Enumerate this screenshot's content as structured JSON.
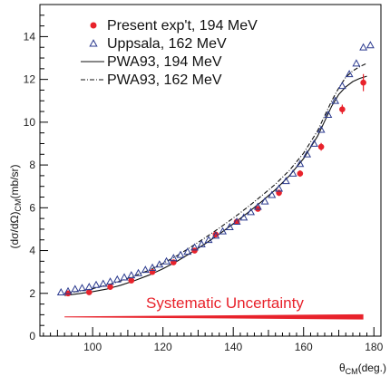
{
  "chart_data": {
    "type": "scatter",
    "ylabel": "(dσ/dΩ)",
    "ylabel_sub": "CM",
    "ylabel_unit": "(mb/sr)",
    "xlabel": "θ",
    "xlabel_sub": "CM",
    "xlabel_unit": "(deg.)",
    "xlim": [
      85,
      182
    ],
    "ylim": [
      0,
      15.5
    ],
    "xticks": [
      100,
      120,
      140,
      160,
      180
    ],
    "yticks": [
      0,
      2,
      4,
      6,
      8,
      10,
      12,
      14
    ],
    "grid": false,
    "legend_position": "top-left",
    "series": [
      {
        "name": "Present exp't, 194 MeV",
        "kind": "points",
        "marker": "filled-circle",
        "color": "#e8222b",
        "x": [
          93,
          99,
          105,
          111,
          117,
          123,
          129,
          135,
          141,
          147,
          153,
          159,
          165,
          171,
          177
        ],
        "y": [
          2.0,
          2.05,
          2.3,
          2.6,
          3.0,
          3.45,
          4.0,
          4.75,
          5.35,
          5.95,
          6.7,
          7.6,
          8.85,
          10.6,
          11.85
        ],
        "err": [
          0.1,
          0.1,
          0.1,
          0.1,
          0.1,
          0.1,
          0.1,
          0.12,
          0.12,
          0.12,
          0.15,
          0.15,
          0.18,
          0.22,
          0.4
        ]
      },
      {
        "name": "Uppsala, 162 MeV",
        "kind": "points",
        "marker": "open-triangle",
        "color": "#2b3a8f",
        "x": [
          91,
          93,
          95,
          97,
          99,
          101,
          103,
          105,
          107,
          109,
          111,
          113,
          115,
          117,
          119,
          121,
          123,
          125,
          127,
          129,
          131,
          133,
          135,
          137,
          139,
          141,
          143,
          145,
          147,
          149,
          151,
          153,
          155,
          157,
          159,
          161,
          163,
          165,
          167,
          169,
          171,
          173,
          175,
          177,
          179
        ],
        "y": [
          2.05,
          2.1,
          2.2,
          2.25,
          2.3,
          2.4,
          2.45,
          2.55,
          2.65,
          2.75,
          2.85,
          2.95,
          3.1,
          3.2,
          3.35,
          3.5,
          3.65,
          3.8,
          3.95,
          4.15,
          4.3,
          4.5,
          4.7,
          4.9,
          5.1,
          5.35,
          5.55,
          5.8,
          6.05,
          6.3,
          6.6,
          6.9,
          7.25,
          7.6,
          8.05,
          8.5,
          9.0,
          9.65,
          10.35,
          11.0,
          11.7,
          12.25,
          12.75,
          13.5,
          13.6
        ]
      },
      {
        "name": "PWA93, 194 MeV",
        "kind": "line",
        "dash": "solid",
        "color": "#111111",
        "x": [
          92,
          96,
          100,
          104,
          108,
          112,
          116,
          120,
          124,
          128,
          132,
          136,
          140,
          144,
          148,
          152,
          156,
          160,
          164,
          166,
          168,
          170,
          172,
          174,
          176,
          178
        ],
        "y": [
          1.9,
          1.98,
          2.08,
          2.2,
          2.38,
          2.6,
          2.85,
          3.15,
          3.5,
          3.9,
          4.32,
          4.77,
          5.25,
          5.75,
          6.28,
          6.85,
          7.5,
          8.3,
          9.35,
          10.05,
          10.75,
          11.3,
          11.65,
          11.9,
          12.05,
          12.15
        ]
      },
      {
        "name": "PWA93, 162 MeV",
        "kind": "line",
        "dash": "dash-dot",
        "color": "#111111",
        "x": [
          92,
          96,
          100,
          104,
          108,
          112,
          116,
          120,
          124,
          128,
          132,
          136,
          140,
          144,
          148,
          152,
          156,
          160,
          164,
          166,
          168,
          170,
          172,
          174,
          176,
          178
        ],
        "y": [
          2.0,
          2.1,
          2.22,
          2.38,
          2.58,
          2.82,
          3.08,
          3.4,
          3.76,
          4.17,
          4.6,
          5.05,
          5.52,
          6.02,
          6.55,
          7.1,
          7.75,
          8.55,
          9.6,
          10.3,
          11.0,
          11.6,
          12.1,
          12.4,
          12.6,
          12.75
        ]
      }
    ],
    "annotation": {
      "text": "Systematic Uncertainty",
      "color": "#e8222b",
      "band_x": [
        92,
        177
      ],
      "band_y_center": 0.9,
      "band_half_width": [
        0.02,
        0.12
      ]
    }
  }
}
